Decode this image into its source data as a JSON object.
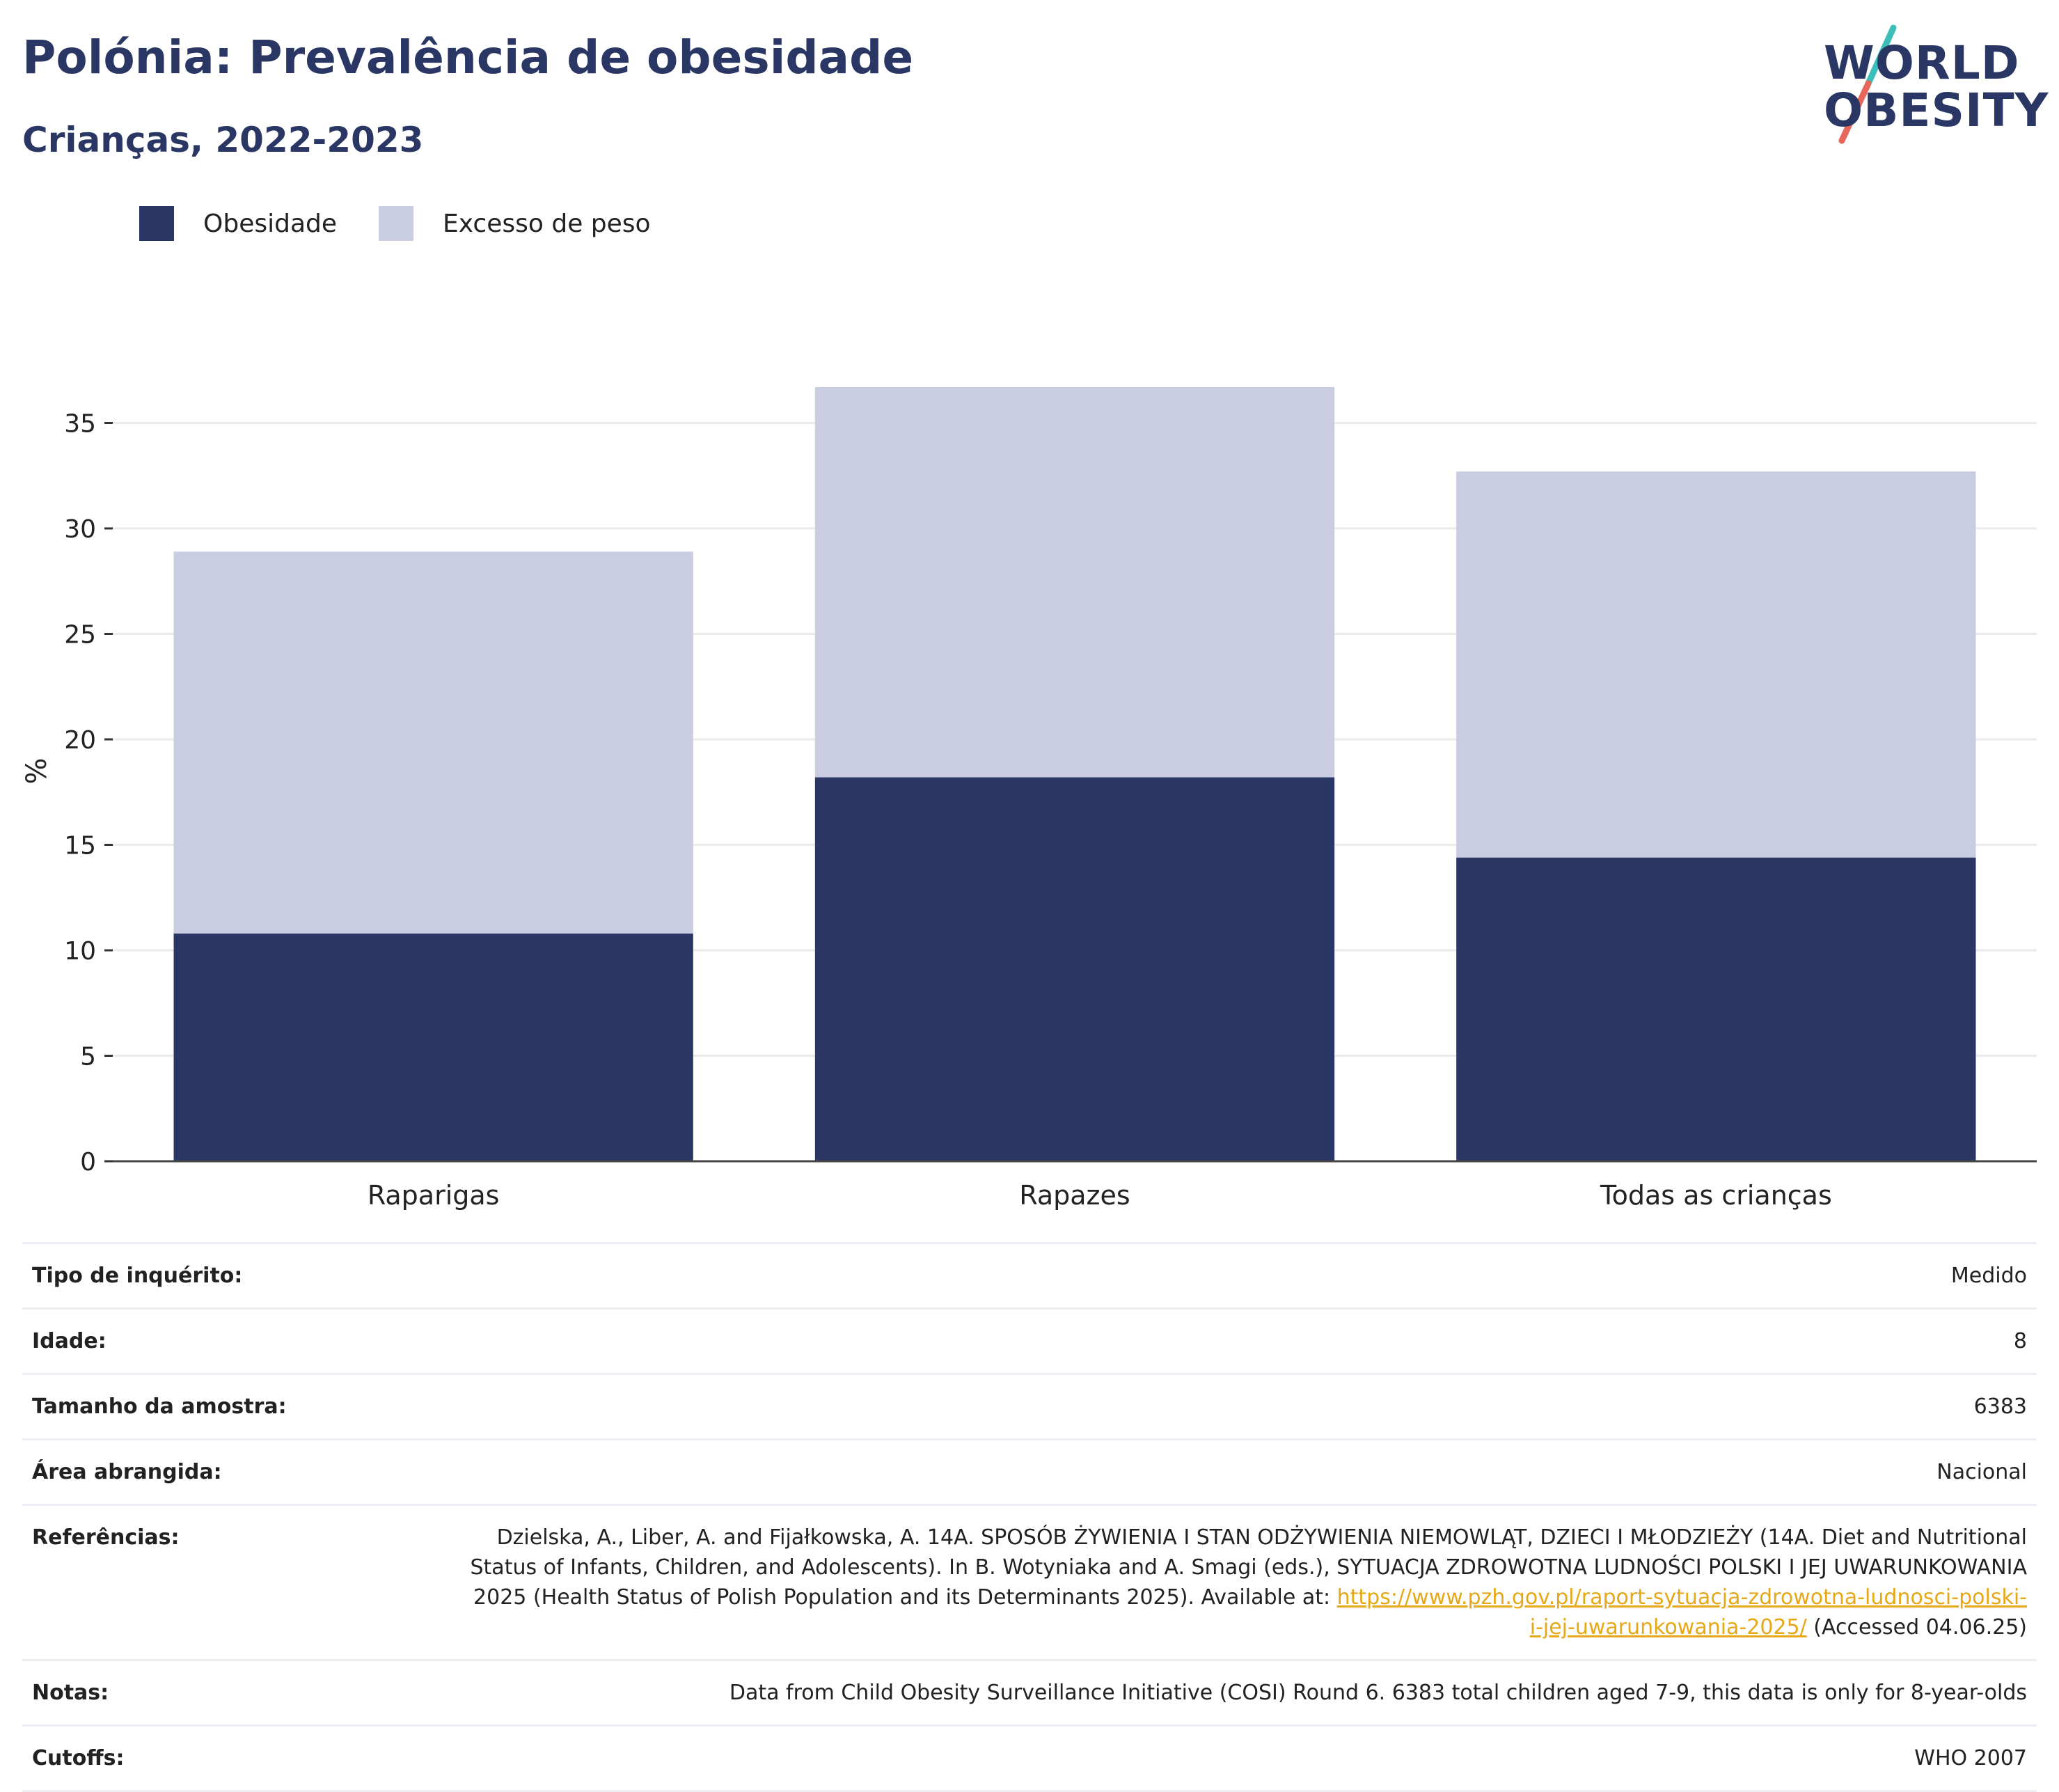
{
  "header": {
    "title": "Polónia: Prevalência de obesidade",
    "subtitle": "Crianças, 2022-2023"
  },
  "logo": {
    "line1": "WORLD",
    "line2": "OBESITY",
    "colors": [
      "#2a3663",
      "#3bbfb8",
      "#e8665a"
    ]
  },
  "legend": {
    "items": [
      {
        "label": "Obesidade",
        "color": "#2a3663"
      },
      {
        "label": "Excesso de peso",
        "color": "#cacce1"
      }
    ]
  },
  "chart_data": {
    "type": "bar",
    "stacked": true,
    "categories": [
      "Raparigas",
      "Rapazes",
      "Todas as crianças"
    ],
    "series": [
      {
        "name": "Obesidade",
        "values": [
          10.8,
          18.2,
          14.4
        ],
        "color": "#2a3663"
      },
      {
        "name": "Excesso de peso",
        "values": [
          18.1,
          18.5,
          18.3
        ],
        "color": "#cacce1"
      }
    ],
    "ylabel": "%",
    "ylim": [
      0,
      37
    ],
    "yticks": [
      0,
      5,
      10,
      15,
      20,
      25,
      30,
      35
    ],
    "grid": true
  },
  "info": {
    "rows": [
      {
        "key": "Tipo de inquérito:",
        "value": "Medido"
      },
      {
        "key": "Idade:",
        "value": "8"
      },
      {
        "key": "Tamanho da amostra:",
        "value": "6383"
      },
      {
        "key": "Área abrangida:",
        "value": "Nacional"
      },
      {
        "key": "Referências:",
        "value": "Dzielska, A., Liber, A. and Fijałkowska, A. 14A. SPOSÓB ŻYWIENIA I STAN ODŻYWIENIA NIEMOWLĄT, DZIECI I MŁODZIEŻY (14A. Diet and Nutritional Status of Infants, Children, and Adolescents). In B. Wotyniaka and A. Smagi (eds.), SYTUACJA ZDROWOTNA LUDNOŚCI POLSKI I JEJ UWARUNKOWANIA 2025 (Health Status of Polish Population and its Determinants 2025). Available at:",
        "link": "https://www.pzh.gov.pl/raport-sytuacja-zdrowotna-ludnosci-polski-i-jej-uwarunkowania-2025/",
        "suffix": "(Accessed 04.06.25)"
      },
      {
        "key": "Notas:",
        "value": "Data from Child Obesity Surveillance Initiative (COSI) Round 6. 6383 total children aged 7-9, this data is only for 8-year-olds"
      },
      {
        "key": "Cutoffs:",
        "value": "WHO 2007"
      }
    ]
  }
}
